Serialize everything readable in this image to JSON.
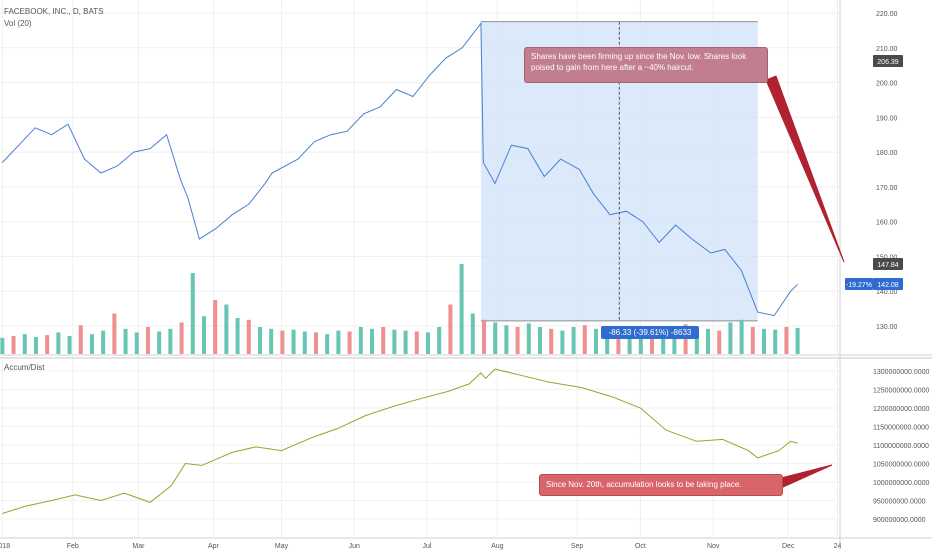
{
  "header": {
    "symbol": "FACEBOOK, INC., D, BATS",
    "volume_indicator": "Vol (20)",
    "lower_indicator": "Accum/Dist"
  },
  "colors": {
    "price_line": "#4a7fd1",
    "accum_line": "#a0a030",
    "volume_up": "#66c5b3",
    "volume_down": "#f08f8f",
    "range_fill": "#cfe2fa",
    "annotation_fill": "#c07e8e",
    "annotation_fill_2": "#d9656a",
    "arrow": "#b02230",
    "label_blue": "#2f6bd1"
  },
  "annotations": {
    "price_note": "Shares have been firming up since the Nov. low. Shares look poised to gain from here after a ~40% haircut.",
    "range_label": "-86.33 (-39.61%) -8633",
    "accum_note": "Since Nov. 20th, accumulation looks to be taking place."
  },
  "price_labels": {
    "range_top": "206.39",
    "range_bottom": "147.84",
    "last_change": "-19.27%",
    "last_price": "142.08"
  },
  "chart_data": [
    {
      "type": "line",
      "title": "FACEBOOK, INC., D, BATS",
      "ylim": [
        125,
        222
      ],
      "yticks": [
        "220.00",
        "210.00",
        "200.00",
        "190.00",
        "180.00",
        "170.00",
        "160.00",
        "150.00",
        "140.00",
        "130.00"
      ],
      "xticks": [
        "2018",
        "Feb",
        "Mar",
        "Apr",
        "May",
        "Jun",
        "Jul",
        "Aug",
        "Sep",
        "Oct",
        "Nov",
        "Dec",
        "24"
      ],
      "series": [
        {
          "x": [
            "2018-01-02",
            "2018-01-09",
            "2018-01-16",
            "2018-01-23",
            "2018-01-30",
            "2018-02-06",
            "2018-02-13",
            "2018-02-20",
            "2018-02-27",
            "2018-03-06",
            "2018-03-13",
            "2018-03-19",
            "2018-03-22",
            "2018-03-27",
            "2018-04-03",
            "2018-04-10",
            "2018-04-17",
            "2018-04-24",
            "2018-04-27",
            "2018-05-08",
            "2018-05-15",
            "2018-05-22",
            "2018-05-29",
            "2018-06-05",
            "2018-06-12",
            "2018-06-19",
            "2018-06-26",
            "2018-07-03",
            "2018-07-10",
            "2018-07-17",
            "2018-07-25",
            "2018-07-26",
            "2018-07-31",
            "2018-08-07",
            "2018-08-14",
            "2018-08-21",
            "2018-08-28",
            "2018-09-05",
            "2018-09-11",
            "2018-09-18",
            "2018-09-25",
            "2018-10-02",
            "2018-10-09",
            "2018-10-16",
            "2018-10-23",
            "2018-10-31",
            "2018-11-06",
            "2018-11-13",
            "2018-11-20",
            "2018-11-27",
            "2018-12-04",
            "2018-12-07"
          ],
          "values": [
            177,
            182,
            187,
            185,
            188,
            178,
            174,
            176,
            180,
            181,
            185,
            172,
            167,
            155,
            158,
            162,
            165,
            171,
            174,
            178,
            183,
            185,
            186,
            191,
            193,
            198,
            196,
            202,
            207,
            210,
            217,
            177,
            171,
            182,
            181,
            173,
            178,
            175,
            168,
            162,
            163,
            160,
            154,
            159,
            155,
            151,
            152,
            146,
            134,
            133,
            140,
            142
          ]
        }
      ]
    },
    {
      "type": "bar",
      "title": "Vol (20)",
      "note": "daily volume, up (green) / down (red)",
      "ylim": [
        0,
        1.0
      ],
      "values": [
        0.18,
        0.2,
        0.22,
        0.19,
        0.21,
        0.24,
        0.2,
        0.32,
        0.22,
        0.26,
        0.45,
        0.28,
        0.24,
        0.3,
        0.25,
        0.28,
        0.35,
        0.9,
        0.42,
        0.6,
        0.55,
        0.4,
        0.38,
        0.3,
        0.28,
        0.26,
        0.27,
        0.25,
        0.24,
        0.22,
        0.26,
        0.25,
        0.3,
        0.28,
        0.3,
        0.27,
        0.26,
        0.25,
        0.24,
        0.3,
        0.55,
        1.0,
        0.45,
        0.38,
        0.35,
        0.32,
        0.3,
        0.34,
        0.3,
        0.28,
        0.26,
        0.3,
        0.32,
        0.28,
        0.27,
        0.3,
        0.28,
        0.26,
        0.3,
        0.28,
        0.26,
        0.33,
        0.3,
        0.28,
        0.26,
        0.35,
        0.38,
        0.3,
        0.28,
        0.27,
        0.3,
        0.29
      ]
    },
    {
      "type": "line",
      "title": "Accum/Dist",
      "ylim": [
        870000000,
        1320000000
      ],
      "yticks": [
        "1300000000.0000",
        "1250000000.0000",
        "1200000000.0000",
        "1150000000.0000",
        "1100000000.0000",
        "1050000000.0000",
        "1000000000.0000",
        "950000000.0000",
        "900000000.0000"
      ],
      "series": [
        {
          "x": [
            "2018-01-02",
            "2018-01-12",
            "2018-01-23",
            "2018-02-02",
            "2018-02-13",
            "2018-02-23",
            "2018-03-06",
            "2018-03-15",
            "2018-03-21",
            "2018-03-28",
            "2018-04-10",
            "2018-04-20",
            "2018-05-01",
            "2018-05-14",
            "2018-05-25",
            "2018-06-06",
            "2018-06-18",
            "2018-06-29",
            "2018-07-11",
            "2018-07-20",
            "2018-07-25",
            "2018-07-27",
            "2018-07-31",
            "2018-08-10",
            "2018-08-23",
            "2018-09-06",
            "2018-09-19",
            "2018-10-01",
            "2018-10-12",
            "2018-10-25",
            "2018-11-05",
            "2018-11-16",
            "2018-11-20",
            "2018-11-29",
            "2018-12-04",
            "2018-12-07"
          ],
          "values": [
            915000000,
            935000000,
            950000000,
            965000000,
            950000000,
            970000000,
            945000000,
            990000000,
            1050000000,
            1045000000,
            1080000000,
            1095000000,
            1085000000,
            1120000000,
            1145000000,
            1180000000,
            1205000000,
            1225000000,
            1245000000,
            1265000000,
            1295000000,
            1280000000,
            1305000000,
            1290000000,
            1270000000,
            1255000000,
            1230000000,
            1200000000,
            1140000000,
            1110000000,
            1115000000,
            1085000000,
            1065000000,
            1085000000,
            1110000000,
            1105000000
          ]
        }
      ]
    }
  ]
}
